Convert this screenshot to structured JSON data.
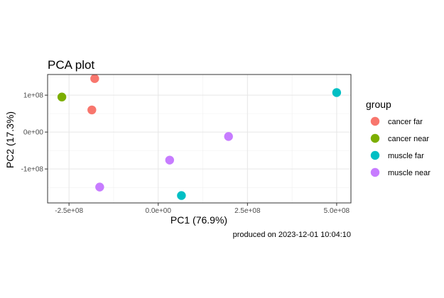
{
  "chart_data": {
    "type": "scatter",
    "title": "PCA plot",
    "xlabel": "PC1 (76.9%)",
    "ylabel": "PC2 (17.3%)",
    "caption": "produced on 2023-12-01 10:04:10",
    "xlim": [
      -310000000.0,
      540000000.0
    ],
    "ylim": [
      -192000000.0,
      156000000.0
    ],
    "x_ticks": [
      {
        "value": -250000000.0,
        "label": "-2.5e+08"
      },
      {
        "value": 0,
        "label": "0.0e+00"
      },
      {
        "value": 250000000.0,
        "label": "2.5e+08"
      },
      {
        "value": 500000000.0,
        "label": "5.0e+08"
      }
    ],
    "y_ticks": [
      {
        "value": 100000000.0,
        "label": "1e+08"
      },
      {
        "value": 0,
        "label": "0e+00"
      },
      {
        "value": -100000000.0,
        "label": "-1e+08"
      }
    ],
    "grid": true,
    "legend": {
      "title": "group",
      "position": "right"
    },
    "series": [
      {
        "name": "cancer far",
        "color": "#F8766D",
        "points": [
          [
            -178000000.0,
            145000000.0
          ],
          [
            -186000000.0,
            60000000.0
          ]
        ]
      },
      {
        "name": "cancer near",
        "color": "#7CAE00",
        "points": [
          [
            -270000000.0,
            95000000.0
          ]
        ]
      },
      {
        "name": "muscle far",
        "color": "#00BFC4",
        "points": [
          [
            500000000.0,
            107000000.0
          ],
          [
            65000000.0,
            -172000000.0
          ]
        ]
      },
      {
        "name": "muscle near",
        "color": "#C77CFF",
        "points": [
          [
            197000000.0,
            -12000000.0
          ],
          [
            32000000.0,
            -76000000.0
          ],
          [
            -164000000.0,
            -149000000.0
          ]
        ]
      }
    ]
  }
}
